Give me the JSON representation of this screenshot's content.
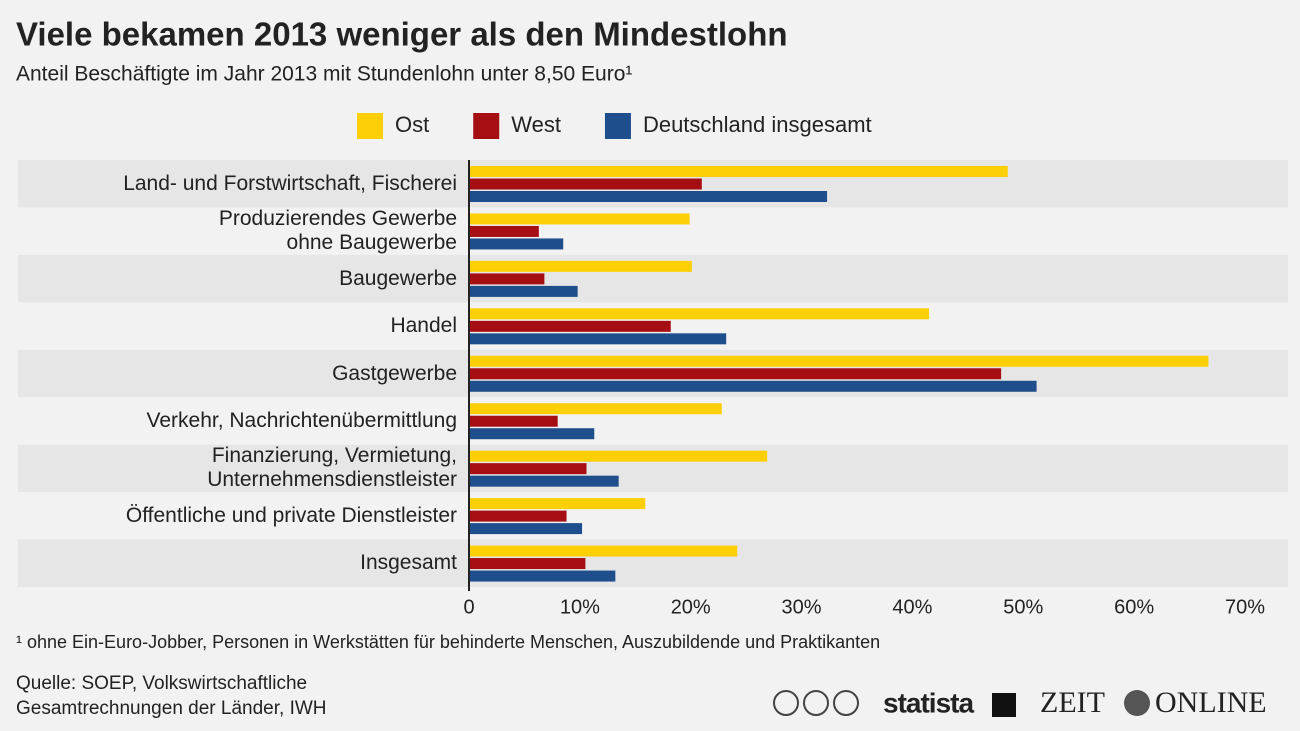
{
  "chart_data": {
    "type": "bar",
    "orientation": "horizontal",
    "title": "Viele bekamen 2013 weniger als den Mindestlohn",
    "subtitle": "Anteil Beschäftigte im Jahr 2013 mit Stundenlohn unter 8,50 Euro¹",
    "categories": [
      "Land- und Forstwirtschaft, Fischerei",
      "Produzierendes Gewerbe\nohne Baugewerbe",
      "Baugewerbe",
      "Handel",
      "Gastgewerbe",
      "Verkehr, Nachrichtenübermittlung",
      "Finanzierung, Vermietung,\nUnternehmensdienstleister",
      "Öffentliche und private Dienstleister",
      "Insgesamt"
    ],
    "series": [
      {
        "name": "Ost",
        "color": "#fccf07",
        "values": [
          48.6,
          19.9,
          20.1,
          41.5,
          66.7,
          22.8,
          26.9,
          15.9,
          24.2
        ]
      },
      {
        "name": "West",
        "color": "#a50f13",
        "values": [
          21.0,
          6.3,
          6.8,
          18.2,
          48.0,
          8.0,
          10.6,
          8.8,
          10.5
        ]
      },
      {
        "name": "Deutschland insgesamt",
        "color": "#1f4e8c",
        "values": [
          32.3,
          8.5,
          9.8,
          23.2,
          51.2,
          11.3,
          13.5,
          10.2,
          13.2
        ]
      }
    ],
    "xlim": [
      0,
      70
    ],
    "xticks": [
      0,
      {
        "value": 10,
        "label": "10%"
      },
      {
        "value": 20,
        "label": "20%"
      },
      {
        "value": 30,
        "label": "30%"
      },
      {
        "value": 40,
        "label": "40%"
      },
      {
        "value": 50,
        "label": "50%"
      },
      {
        "value": 60,
        "label": "60%"
      },
      {
        "value": 70,
        "label": "70%"
      }
    ],
    "grid": false,
    "legend": "top",
    "footnote": "¹ ohne Ein-Euro-Jobber, Personen in Werkstätten für behinderte Menschen, Auszubildende und Praktikanten",
    "source": [
      "Quelle: SOEP, Volkswirtschaftliche",
      "Gesamtrechnungen der Länder, IWH"
    ],
    "logos": [
      "statista",
      "ZEIT",
      "ONLINE"
    ]
  }
}
